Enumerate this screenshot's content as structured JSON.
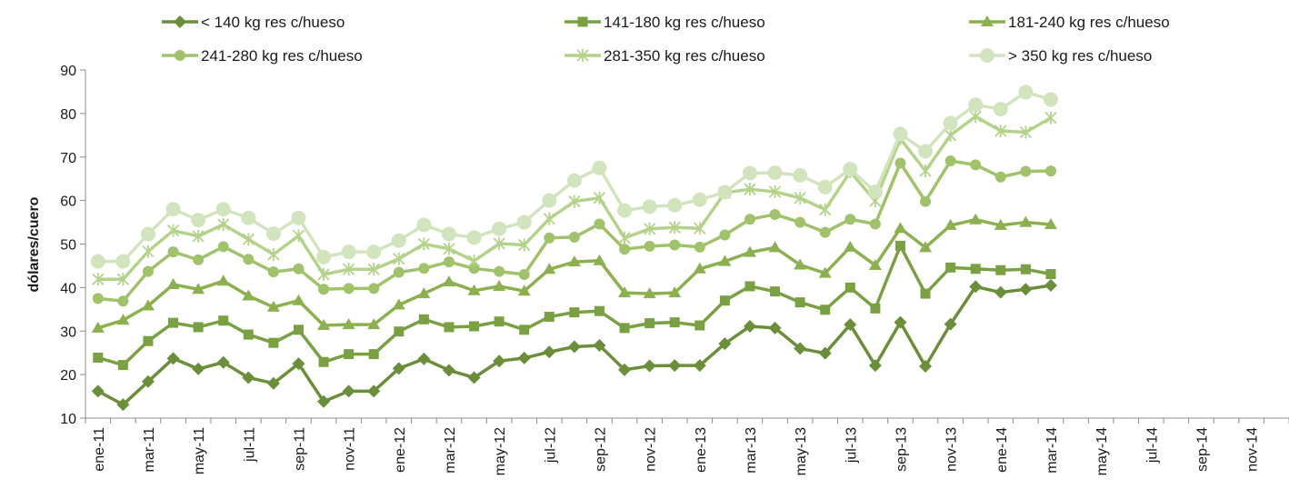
{
  "chart_data": {
    "type": "line",
    "title": "",
    "xlabel": "",
    "ylabel": "dólares/cuero",
    "ylim": [
      10,
      90
    ],
    "yticks": [
      10,
      20,
      30,
      40,
      50,
      60,
      70,
      80,
      90
    ],
    "grid": false,
    "legend_position": "top",
    "x_tick_labels": [
      "ene-11",
      "mar-11",
      "may-11",
      "jul-11",
      "sep-11",
      "nov-11",
      "ene-12",
      "mar-12",
      "may-12",
      "jul-12",
      "sep-12",
      "nov-12",
      "ene-13",
      "mar-13",
      "may-13",
      "jul-13",
      "sep-13",
      "nov-13",
      "ene-14",
      "mar-14",
      "may-14",
      "jul-14",
      "sep-14",
      "nov-14"
    ],
    "x": [
      "ene-11",
      "feb-11",
      "mar-11",
      "abr-11",
      "may-11",
      "jun-11",
      "jul-11",
      "ago-11",
      "sep-11",
      "oct-11",
      "nov-11",
      "dic-11",
      "ene-12",
      "feb-12",
      "mar-12",
      "abr-12",
      "may-12",
      "jun-12",
      "jul-12",
      "ago-12",
      "sep-12",
      "oct-12",
      "nov-12",
      "dic-12",
      "ene-13",
      "feb-13",
      "mar-13",
      "abr-13",
      "may-13",
      "jun-13",
      "jul-13",
      "ago-13",
      "sep-13",
      "oct-13",
      "nov-13",
      "dic-13",
      "ene-14",
      "feb-14",
      "mar-14"
    ],
    "series": [
      {
        "name": "< 140 kg res c/hueso",
        "marker": "diamond",
        "color": "#6b8e3a",
        "values": [
          16.2,
          13.1,
          18.4,
          23.7,
          21.3,
          22.8,
          19.3,
          18.0,
          22.5,
          13.8,
          16.2,
          16.2,
          21.4,
          23.6,
          21.0,
          19.3,
          23.1,
          23.8,
          25.2,
          26.4,
          26.7,
          21.1,
          22.0,
          22.1,
          22.1,
          27.1,
          31.1,
          30.7,
          26.0,
          24.9,
          31.5,
          22.1,
          32.0,
          21.9,
          31.6,
          40.2,
          38.9,
          39.6,
          40.5
        ]
      },
      {
        "name": "141-180 kg res c/hueso",
        "marker": "square",
        "color": "#79a043",
        "values": [
          23.9,
          22.2,
          27.7,
          31.9,
          30.9,
          32.4,
          29.2,
          27.3,
          30.3,
          22.9,
          24.7,
          24.7,
          29.9,
          32.7,
          30.9,
          31.1,
          32.2,
          30.3,
          33.3,
          34.3,
          34.6,
          30.7,
          31.8,
          32.0,
          31.3,
          37.0,
          40.3,
          39.1,
          36.6,
          34.9,
          40.0,
          35.2,
          49.6,
          38.6,
          44.6,
          44.3,
          44.0,
          44.2,
          43.1
        ]
      },
      {
        "name": "181-240 kg res c/hueso",
        "marker": "triangle",
        "color": "#8cb04f",
        "values": [
          30.7,
          32.5,
          35.8,
          40.7,
          39.6,
          41.5,
          38.1,
          35.5,
          37.0,
          31.3,
          31.5,
          31.5,
          36.0,
          38.6,
          41.3,
          39.3,
          40.3,
          39.2,
          44.2,
          45.9,
          46.2,
          38.8,
          38.6,
          38.8,
          44.3,
          46.0,
          48.1,
          49.2,
          45.2,
          43.3,
          49.3,
          45.1,
          53.6,
          49.2,
          54.3,
          55.6,
          54.3,
          55.0,
          54.5
        ]
      },
      {
        "name": "241-280 kg res c/hueso",
        "marker": "circle",
        "color": "#9fc26a",
        "values": [
          37.5,
          36.9,
          43.7,
          48.2,
          46.4,
          49.4,
          46.5,
          43.6,
          44.3,
          39.6,
          39.8,
          39.8,
          43.5,
          44.4,
          45.9,
          44.4,
          43.7,
          43.0,
          51.4,
          51.6,
          54.6,
          48.8,
          49.5,
          49.8,
          49.3,
          52.1,
          55.7,
          56.8,
          55.0,
          52.7,
          55.7,
          54.6,
          68.6,
          59.8,
          69.1,
          68.2,
          65.4,
          66.7,
          66.8
        ]
      },
      {
        "name": "281-350 kg res c/hueso",
        "marker": "star",
        "color": "#b4d38a",
        "values": [
          41.9,
          41.9,
          48.3,
          53.1,
          51.8,
          54.5,
          51.1,
          47.6,
          51.9,
          43.0,
          44.2,
          44.2,
          46.6,
          50.0,
          48.9,
          46.1,
          50.1,
          49.8,
          55.8,
          59.8,
          60.6,
          51.4,
          53.5,
          53.8,
          53.6,
          61.8,
          62.6,
          62.0,
          60.6,
          57.9,
          66.6,
          59.9,
          74.2,
          66.8,
          75.0,
          79.3,
          76.0,
          75.7,
          79.0
        ]
      },
      {
        "name": "> 350 kg res c/hueso",
        "marker": "bigcircle",
        "color": "#d2e4bd",
        "values": [
          46.0,
          46.0,
          52.3,
          58.0,
          55.5,
          58.0,
          56.0,
          52.4,
          56.0,
          47.0,
          48.2,
          48.2,
          50.8,
          54.4,
          52.3,
          51.5,
          53.5,
          55.0,
          60.0,
          64.6,
          67.5,
          57.7,
          58.6,
          58.9,
          60.2,
          61.9,
          66.3,
          66.4,
          65.8,
          63.1,
          67.2,
          62.0,
          75.3,
          71.3,
          77.8,
          82.0,
          81.0,
          84.9,
          83.2
        ]
      }
    ]
  }
}
